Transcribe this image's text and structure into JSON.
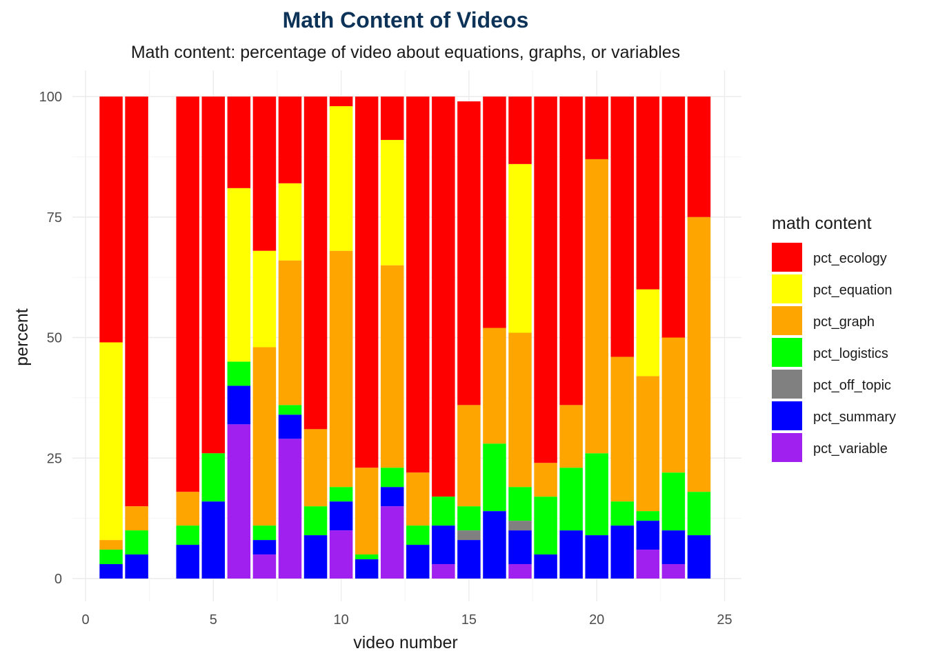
{
  "chart_data": {
    "type": "bar",
    "stacked": true,
    "title": "Math Content of Videos",
    "subtitle": "Math content: percentage of video about equations, graphs, or variables",
    "xlabel": "video number",
    "ylabel": "percent",
    "xlim": [
      0,
      25
    ],
    "ylim": [
      0,
      100
    ],
    "x_ticks": [
      0,
      5,
      10,
      15,
      20,
      25
    ],
    "y_ticks": [
      0,
      25,
      50,
      75,
      100
    ],
    "grid": true,
    "legend": {
      "title": "math content",
      "position": "right"
    },
    "x": [
      1,
      2,
      4,
      5,
      6,
      7,
      8,
      9,
      10,
      11,
      12,
      13,
      14,
      15,
      16,
      17,
      18,
      19,
      20,
      21,
      22,
      23,
      24
    ],
    "series": [
      {
        "name": "pct_variable",
        "color": "#a020f0",
        "values": [
          0,
          0,
          0,
          0,
          32,
          5,
          29,
          0,
          10,
          0,
          15,
          0,
          3,
          0,
          0,
          3,
          0,
          0,
          0,
          0,
          6,
          3,
          0
        ]
      },
      {
        "name": "pct_summary",
        "color": "#0000ff",
        "values": [
          3,
          5,
          7,
          16,
          8,
          3,
          5,
          9,
          6,
          4,
          4,
          7,
          8,
          8,
          14,
          7,
          5,
          10,
          9,
          11,
          6,
          7,
          9
        ]
      },
      {
        "name": "pct_off_topic",
        "color": "#808080",
        "values": [
          0,
          0,
          0,
          0,
          0,
          0,
          0,
          0,
          0,
          0,
          0,
          0,
          0,
          2,
          0,
          2,
          0,
          0,
          0,
          0,
          0,
          0,
          0
        ]
      },
      {
        "name": "pct_logistics",
        "color": "#00ff00",
        "values": [
          3,
          5,
          4,
          10,
          5,
          3,
          2,
          6,
          3,
          1,
          4,
          4,
          6,
          5,
          14,
          7,
          12,
          13,
          17,
          5,
          2,
          12,
          9
        ]
      },
      {
        "name": "pct_graph",
        "color": "#ffa500",
        "values": [
          2,
          5,
          7,
          0,
          0,
          37,
          30,
          16,
          49,
          18,
          42,
          11,
          0,
          21,
          24,
          32,
          7,
          13,
          61,
          30,
          28,
          28,
          57
        ]
      },
      {
        "name": "pct_equation",
        "color": "#ffff00",
        "values": [
          41,
          0,
          0,
          0,
          36,
          20,
          16,
          0,
          30,
          0,
          26,
          0,
          0,
          0,
          0,
          35,
          0,
          0,
          0,
          0,
          18,
          0,
          0
        ]
      },
      {
        "name": "pct_ecology",
        "color": "#ff0000",
        "values": [
          51,
          85,
          82,
          74,
          19,
          32,
          18,
          69,
          2,
          77,
          9,
          78,
          83,
          63,
          48,
          14,
          76,
          64,
          13,
          54,
          40,
          50,
          25
        ]
      }
    ],
    "legend_order": [
      "pct_ecology",
      "pct_equation",
      "pct_graph",
      "pct_logistics",
      "pct_off_topic",
      "pct_summary",
      "pct_variable"
    ]
  }
}
